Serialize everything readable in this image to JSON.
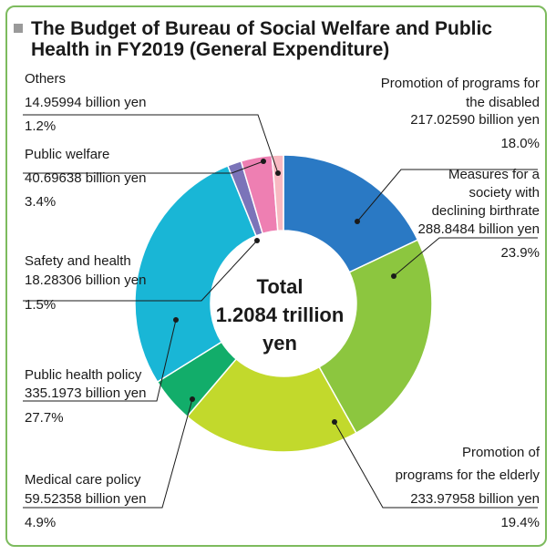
{
  "chart_data": {
    "type": "pie",
    "title_line1": "The Budget of Bureau of Social Welfare and Public",
    "title_line2": "Health in FY2019 (General Expenditure)",
    "center_line1": "Total",
    "center_line2": "1.2084 trillion",
    "center_line3": "yen",
    "slices": [
      {
        "lines": [
          "Promotion of programs for",
          "the disabled",
          "217.02590 billion yen"
        ],
        "pct_label": "18.0%",
        "value": 217.0259,
        "percent": 18.0,
        "color": "#2a79c4"
      },
      {
        "lines": [
          "Measures for a",
          "society with",
          "declining birthrate",
          "288.8484 billion yen"
        ],
        "pct_label": "23.9%",
        "value": 288.8484,
        "percent": 23.9,
        "color": "#8cc63f"
      },
      {
        "lines": [
          "Promotion of",
          "programs for the elderly",
          "233.97958 billion yen"
        ],
        "pct_label": "19.4%",
        "value": 233.97958,
        "percent": 19.4,
        "color": "#c2d92c"
      },
      {
        "lines": [
          "Medical care policy",
          "59.52358 billion yen"
        ],
        "pct_label": "4.9%",
        "value": 59.52358,
        "percent": 4.9,
        "color": "#12ad6a"
      },
      {
        "lines": [
          "Public health policy",
          "335.1973 billion yen"
        ],
        "pct_label": "27.7%",
        "value": 335.1973,
        "percent": 27.7,
        "color": "#19b6d6"
      },
      {
        "lines": [
          "Safety and health",
          "18.28306 billion yen"
        ],
        "pct_label": "1.5%",
        "value": 18.28306,
        "percent": 1.5,
        "color": "#7b74b9"
      },
      {
        "lines": [
          "Public welfare",
          "40.69638 billion yen"
        ],
        "pct_label": "3.4%",
        "value": 40.69638,
        "percent": 3.4,
        "color": "#ee7fb2"
      },
      {
        "lines": [
          "Others",
          "14.95994 billion yen"
        ],
        "pct_label": "1.2%",
        "value": 14.95994,
        "percent": 1.2,
        "color": "#f8b9c2"
      }
    ]
  }
}
